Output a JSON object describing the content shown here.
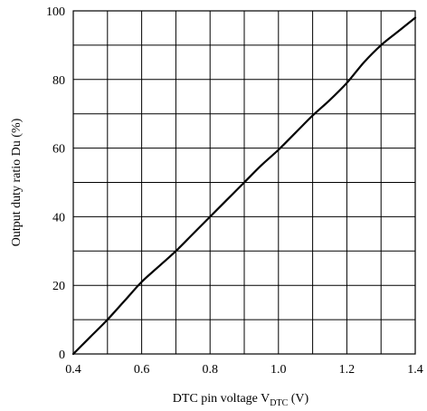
{
  "chart_data": {
    "type": "line",
    "title": "",
    "xlabel": "DTC pin voltage  V",
    "xlabel_sub": "DTC",
    "xlabel_unit": "  (V)",
    "ylabel": "Output duty ratio  Du  (%)",
    "xlim": [
      0.4,
      1.4
    ],
    "ylim": [
      0,
      100
    ],
    "x_minor_step": 0.1,
    "y_minor_step": 10,
    "x_tick_labels": [
      "0.4",
      "0.6",
      "0.8",
      "1.0",
      "1.2",
      "1.4"
    ],
    "y_tick_labels": [
      "0",
      "20",
      "40",
      "60",
      "80",
      "100"
    ],
    "grid": true,
    "series": [
      {
        "points": [
          [
            0.4,
            0
          ],
          [
            0.45,
            5
          ],
          [
            0.5,
            10
          ],
          [
            0.55,
            15.5
          ],
          [
            0.6,
            21
          ],
          [
            0.65,
            25.5
          ],
          [
            0.7,
            30
          ],
          [
            0.75,
            35
          ],
          [
            0.8,
            40
          ],
          [
            0.85,
            45
          ],
          [
            0.9,
            50
          ],
          [
            0.95,
            55
          ],
          [
            1.0,
            59.5
          ],
          [
            1.05,
            64.5
          ],
          [
            1.1,
            69.5
          ],
          [
            1.15,
            74
          ],
          [
            1.2,
            79
          ],
          [
            1.25,
            85
          ],
          [
            1.3,
            90
          ],
          [
            1.35,
            94
          ],
          [
            1.4,
            98
          ]
        ]
      }
    ]
  }
}
